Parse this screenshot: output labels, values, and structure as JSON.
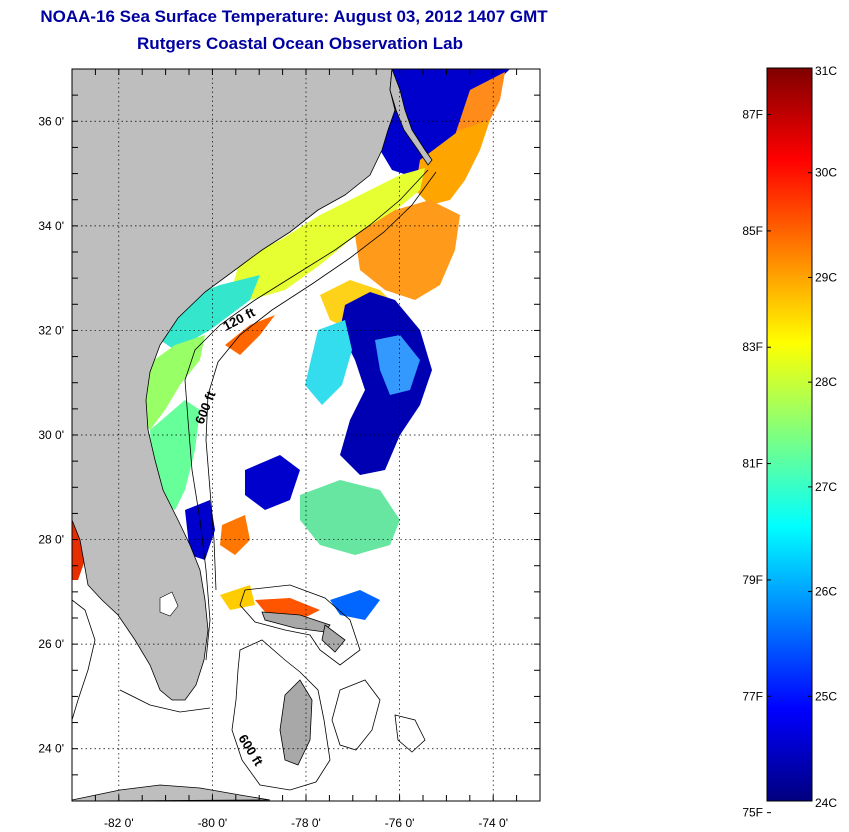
{
  "header": {
    "title": "NOAA-16 Sea Surface Temperature:  August 03, 2012 1407 GMT",
    "subtitle": "Rutgers Coastal Ocean Observation Lab"
  },
  "map": {
    "lon_range": [
      -83,
      -73
    ],
    "lat_range": [
      23,
      37
    ],
    "lon_ticks": [
      {
        "value": -82,
        "label": "-82 0'"
      },
      {
        "value": -80,
        "label": "-80 0'"
      },
      {
        "value": -78,
        "label": "-78 0'"
      },
      {
        "value": -76,
        "label": "-76 0'"
      },
      {
        "value": -74,
        "label": "-74 0'"
      }
    ],
    "lat_ticks": [
      {
        "value": 36,
        "label": "36 0'"
      },
      {
        "value": 34,
        "label": "34 0'"
      },
      {
        "value": 32,
        "label": "32 0'"
      },
      {
        "value": 30,
        "label": "30 0'"
      },
      {
        "value": 28,
        "label": "28 0'"
      },
      {
        "value": 26,
        "label": "26 0'"
      },
      {
        "value": 24,
        "label": "24 0'"
      }
    ],
    "contour_labels": {
      "shelf_120": "120 ft",
      "shelf_600_north": "600 ft",
      "shelf_600_south": "600 ft"
    },
    "land_color": "#bebebe",
    "grid": "dotted"
  },
  "colorbar": {
    "range_c": [
      24,
      31
    ],
    "celsius_labels": [
      {
        "value": 31,
        "label": "31C"
      },
      {
        "value": 30,
        "label": "30C"
      },
      {
        "value": 29,
        "label": "29C"
      },
      {
        "value": 28,
        "label": "28C"
      },
      {
        "value": 27,
        "label": "27C"
      },
      {
        "value": 26,
        "label": "26C"
      },
      {
        "value": 25,
        "label": "25C"
      },
      {
        "value": 24,
        "label": "24C"
      }
    ],
    "fahrenheit_labels": [
      {
        "value": 87,
        "label": "87F"
      },
      {
        "value": 85,
        "label": "85F"
      },
      {
        "value": 83,
        "label": "83F"
      },
      {
        "value": 81,
        "label": "81F"
      },
      {
        "value": 79,
        "label": "79F"
      },
      {
        "value": 77,
        "label": "77F"
      },
      {
        "value": 75,
        "label": "75F"
      }
    ],
    "colors": [
      "#00007f",
      "#0000ff",
      "#007fff",
      "#00ffff",
      "#7fff7f",
      "#ffff00",
      "#ff7f00",
      "#ff0000",
      "#7f0000"
    ]
  }
}
